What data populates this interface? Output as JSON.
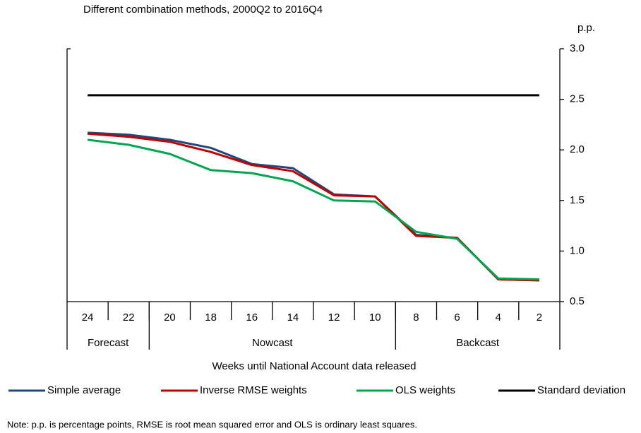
{
  "chart_data": {
    "type": "line",
    "title": "Different combination methods, 2000Q2 to 2016Q4",
    "y_unit": "p.p.",
    "x_label": "Weeks until National Account data released",
    "categories": [
      "24",
      "22",
      "20",
      "18",
      "16",
      "14",
      "12",
      "10",
      "8",
      "6",
      "4",
      "2"
    ],
    "category_groups": [
      {
        "name": "Forecast",
        "from": "24",
        "to": "22"
      },
      {
        "name": "Nowcast",
        "from": "20",
        "to": "10"
      },
      {
        "name": "Backcast",
        "from": "8",
        "to": "2"
      }
    ],
    "series": [
      {
        "name": "Simple average",
        "color": "#24477a",
        "values": [
          2.17,
          2.15,
          2.1,
          2.02,
          1.86,
          1.82,
          1.56,
          1.54,
          1.16,
          1.13,
          0.72,
          0.71
        ]
      },
      {
        "name": "Inverse RMSE weights",
        "color": "#c00000",
        "values": [
          2.16,
          2.13,
          2.08,
          1.98,
          1.85,
          1.79,
          1.55,
          1.54,
          1.15,
          1.13,
          0.72,
          0.71
        ]
      },
      {
        "name": "OLS weights",
        "color": "#00a550",
        "values": [
          2.1,
          2.05,
          1.96,
          1.8,
          1.77,
          1.69,
          1.5,
          1.49,
          1.19,
          1.12,
          0.73,
          0.72
        ]
      },
      {
        "name": "Standard deviation",
        "color": "#000000",
        "values": [
          2.54,
          2.54,
          2.54,
          2.54,
          2.54,
          2.54,
          2.54,
          2.54,
          2.54,
          2.54,
          2.54,
          2.54
        ]
      }
    ],
    "ylim": [
      0.5,
      3.0
    ],
    "yticks": [
      0.5,
      {
        "value": 1.0,
        "label": "1.0"
      },
      1.5,
      {
        "value": 2.0,
        "label": "2.0"
      },
      2.5,
      {
        "value": 3.0,
        "label": "3.0"
      }
    ],
    "y_axis_side": "right",
    "grid": false,
    "note": "Note: p.p. is percentage points, RMSE is root mean squared error and OLS is ordinary least squares."
  }
}
